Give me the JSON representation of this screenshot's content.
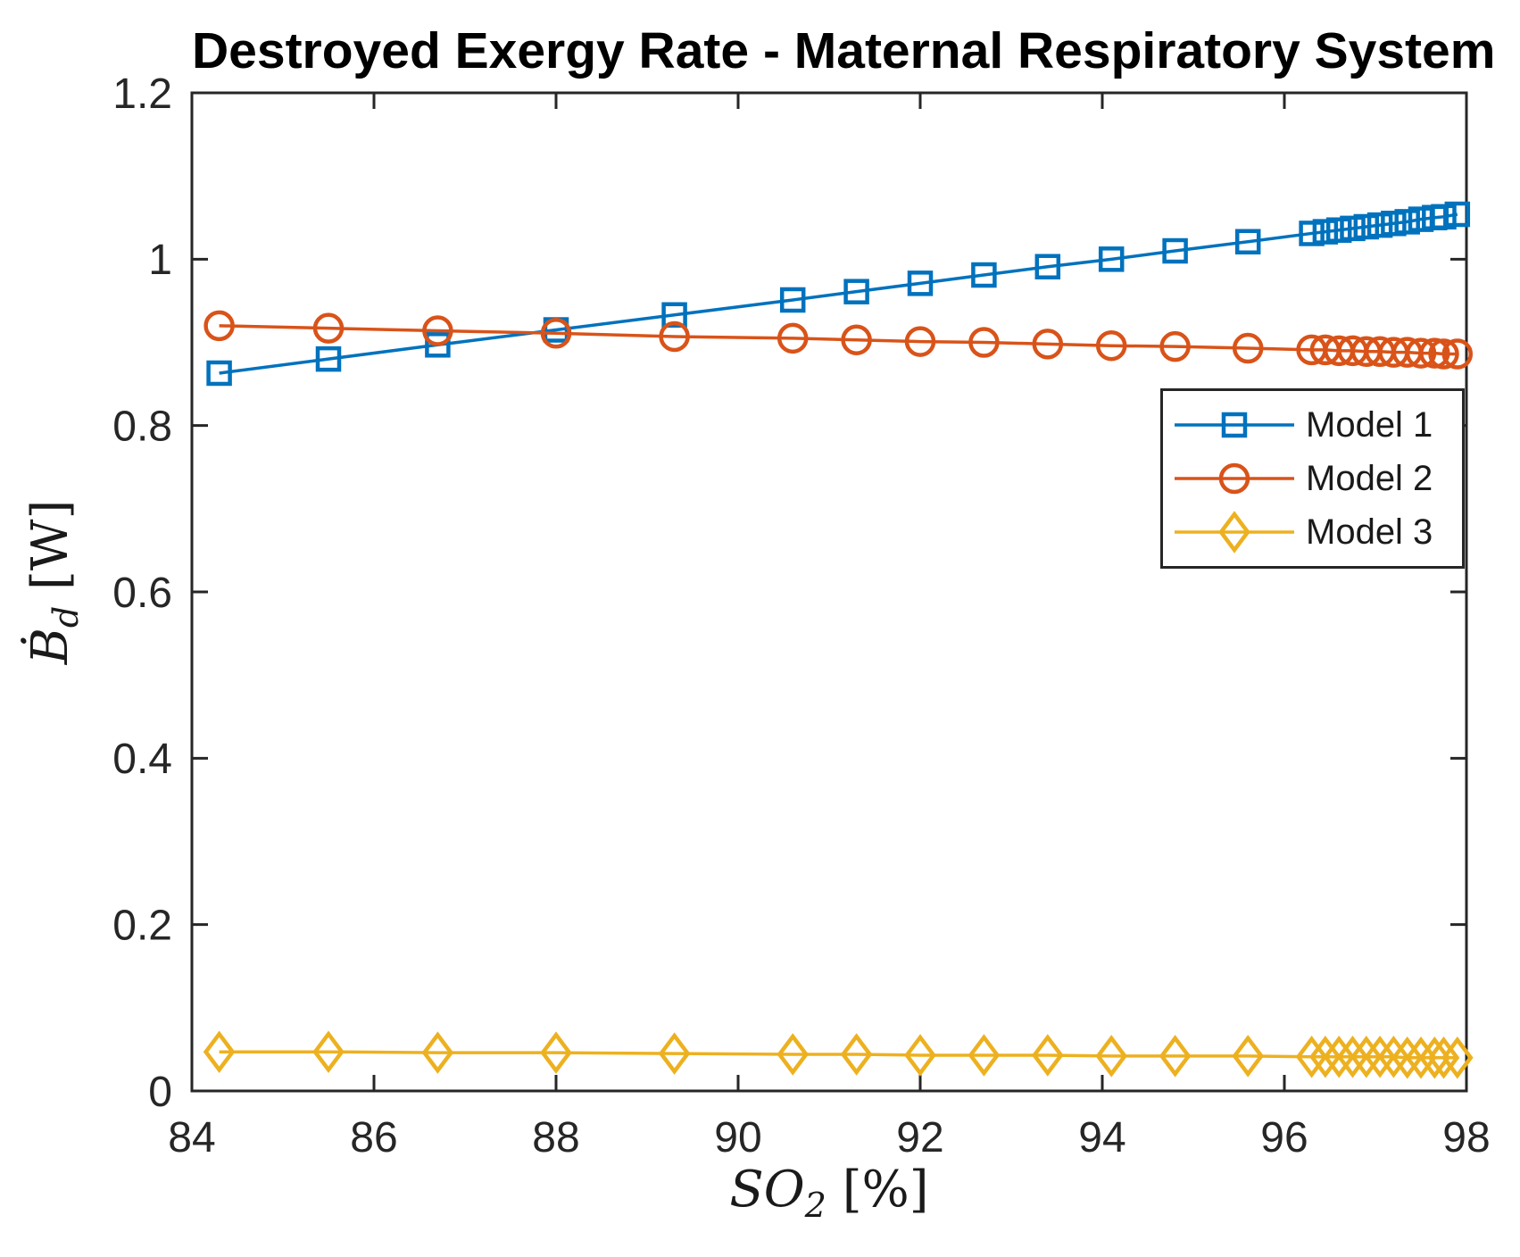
{
  "chart_data": {
    "type": "line",
    "title": "Destroyed Exergy Rate - Maternal Respiratory System",
    "xlabel": "SO_2 [%]",
    "ylabel": "B_d (dot) [W]",
    "xlabel_parts": {
      "base": "SO",
      "sub": "2",
      "suffix": " [%]"
    },
    "ylabel_parts": {
      "base": "Ḃ",
      "sub": "d",
      "suffix": " [W]"
    },
    "xlim": [
      84,
      98
    ],
    "ylim": [
      0,
      1.2
    ],
    "xticks": [
      84,
      86,
      88,
      90,
      92,
      94,
      96,
      98
    ],
    "xtick_labels": [
      "84",
      "86",
      "88",
      "90",
      "92",
      "94",
      "96",
      "98"
    ],
    "yticks": [
      0,
      0.2,
      0.4,
      0.6,
      0.8,
      1,
      1.2
    ],
    "ytick_labels": [
      "0",
      "0.2",
      "0.4",
      "0.6",
      "0.8",
      "1",
      "1.2"
    ],
    "grid": false,
    "legend_position": "northeast-inside",
    "axis_color": "#262626",
    "x": [
      84.3,
      85.5,
      86.7,
      88.0,
      89.3,
      90.6,
      91.3,
      92.0,
      92.7,
      93.4,
      94.1,
      94.8,
      95.6,
      96.3,
      96.45,
      96.6,
      96.75,
      96.9,
      97.05,
      97.2,
      97.35,
      97.5,
      97.65,
      97.75,
      97.9
    ],
    "series": [
      {
        "name": "Model 1",
        "color": "#0072BD",
        "marker": "square",
        "values": [
          0.863,
          0.88,
          0.897,
          0.915,
          0.933,
          0.951,
          0.961,
          0.971,
          0.981,
          0.991,
          1.0,
          1.01,
          1.021,
          1.031,
          1.033,
          1.035,
          1.037,
          1.039,
          1.041,
          1.043,
          1.045,
          1.048,
          1.05,
          1.051,
          1.054
        ]
      },
      {
        "name": "Model 2",
        "color": "#D95319",
        "marker": "circle",
        "values": [
          0.92,
          0.917,
          0.914,
          0.911,
          0.907,
          0.905,
          0.903,
          0.901,
          0.9,
          0.898,
          0.896,
          0.895,
          0.893,
          0.891,
          0.891,
          0.89,
          0.89,
          0.889,
          0.889,
          0.888,
          0.888,
          0.887,
          0.887,
          0.886,
          0.886
        ]
      },
      {
        "name": "Model 3",
        "color": "#EDB120",
        "marker": "diamond",
        "values": [
          0.047,
          0.047,
          0.046,
          0.046,
          0.045,
          0.044,
          0.044,
          0.043,
          0.043,
          0.043,
          0.042,
          0.042,
          0.042,
          0.041,
          0.041,
          0.041,
          0.041,
          0.041,
          0.041,
          0.041,
          0.04,
          0.04,
          0.04,
          0.04,
          0.04
        ]
      }
    ]
  }
}
